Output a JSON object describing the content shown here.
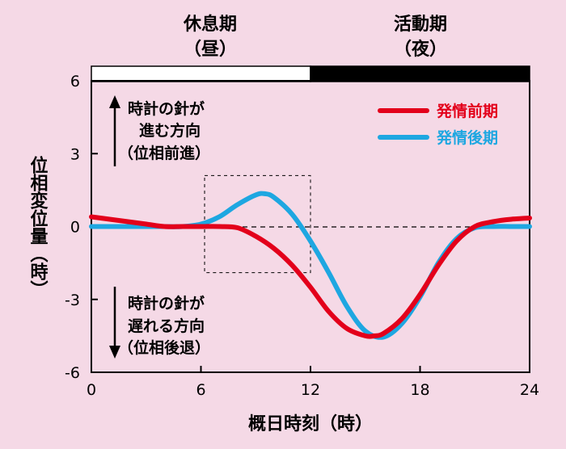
{
  "chart_data": {
    "type": "line",
    "xlabel": "概日時刻（時）",
    "ylabel": "位相変位量（時）",
    "xlim": [
      0,
      24
    ],
    "ylim": [
      -6,
      6
    ],
    "xticks": [
      "0",
      "6",
      "12",
      "18",
      "24"
    ],
    "yticks": [
      "6",
      "3",
      "0",
      "-3",
      "-6"
    ],
    "phases": [
      {
        "title": "休息期",
        "sub": "（昼）",
        "range": [
          0,
          12
        ],
        "color": "#ffffff"
      },
      {
        "title": "活動期",
        "sub": "（夜）",
        "range": [
          12,
          24
        ],
        "color": "#000000"
      }
    ],
    "annotations": {
      "advance": [
        "時計の針が",
        "進む方向",
        "（位相前進）"
      ],
      "delay": [
        "時計の針が",
        "遅れる方向",
        "（位相後退）"
      ]
    },
    "legend": {
      "placement": "top-right"
    },
    "highlight_box": {
      "x": [
        6.2,
        12
      ],
      "y": [
        -1.9,
        2.1
      ]
    },
    "series": [
      {
        "name": "発情前期",
        "color": "#e3001b",
        "x": [
          0,
          1,
          2,
          3,
          4,
          5,
          6,
          7,
          8,
          9,
          10,
          11,
          12,
          13,
          14,
          15,
          15.5,
          16,
          17,
          18,
          19,
          20,
          21,
          22,
          23,
          24
        ],
        "y": [
          0.4,
          0.3,
          0.2,
          0.1,
          0.0,
          0.0,
          0.0,
          0.0,
          -0.05,
          -0.4,
          -0.9,
          -1.6,
          -2.5,
          -3.5,
          -4.2,
          -4.5,
          -4.5,
          -4.4,
          -3.8,
          -2.8,
          -1.6,
          -0.6,
          0.0,
          0.2,
          0.3,
          0.35
        ]
      },
      {
        "name": "発情後期",
        "color": "#1ea7e1",
        "x": [
          0,
          1,
          2,
          3,
          4,
          5,
          6,
          7,
          8,
          9,
          9.5,
          10,
          11,
          12,
          13,
          14,
          15,
          16,
          17,
          18,
          19,
          20,
          21,
          22,
          23,
          24
        ],
        "y": [
          0.0,
          0.0,
          0.0,
          0.0,
          0.0,
          0.0,
          0.1,
          0.4,
          0.9,
          1.3,
          1.35,
          1.2,
          0.5,
          -0.6,
          -1.9,
          -3.3,
          -4.3,
          -4.55,
          -4.0,
          -2.9,
          -1.5,
          -0.5,
          -0.05,
          0.0,
          0.0,
          0.0
        ]
      }
    ]
  }
}
